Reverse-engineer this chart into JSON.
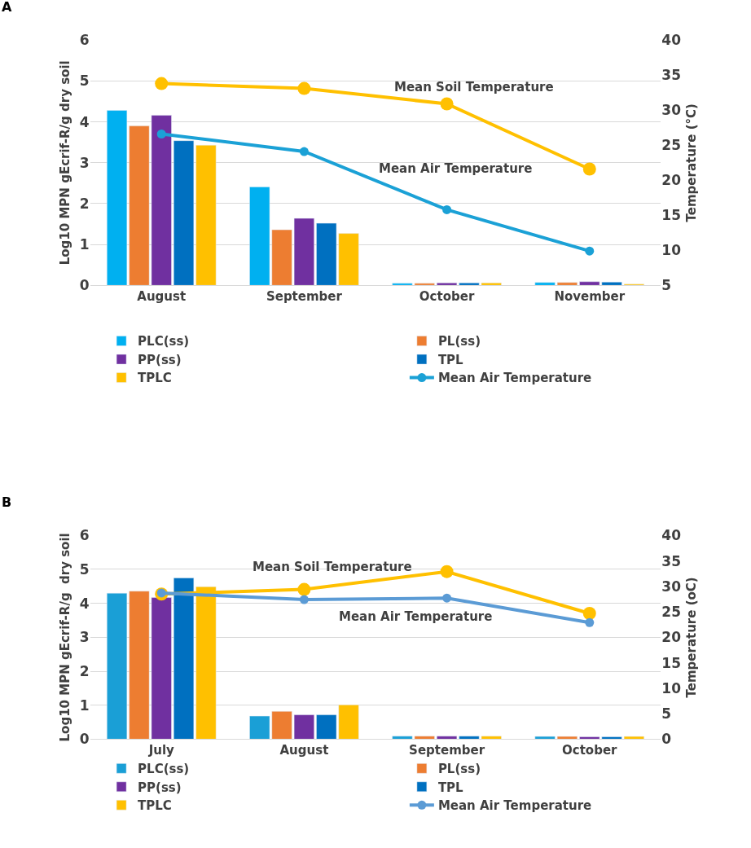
{
  "chart_data": [
    {
      "type": "bar",
      "categories": [
        "August",
        "September",
        "October",
        "November"
      ],
      "ylabel": "Log10 MPN gEcrif-R/g dry soil",
      "y2label": "Temperature (°C)",
      "ylim": [
        0,
        6
      ],
      "yticks": [
        0,
        1,
        2,
        3,
        4,
        5,
        6
      ],
      "y2lim": [
        5,
        40
      ],
      "y2ticks": [
        5,
        10,
        15,
        20,
        25,
        30,
        35,
        40
      ],
      "grid": "y",
      "legend": "bottom",
      "annotations": [
        "A",
        "Mean Soil Temperature",
        "Mean Air Temperature"
      ],
      "series": [
        {
          "name": "PLC(ss)",
          "color": "#00b0f0",
          "values": [
            4.28,
            2.41,
            0.05,
            0.07
          ]
        },
        {
          "name": "PL(ss)",
          "color": "#ed7d31",
          "values": [
            3.9,
            1.36,
            0.05,
            0.07
          ]
        },
        {
          "name": "PP(ss)",
          "color": "#7030a0",
          "values": [
            4.16,
            1.64,
            0.06,
            0.09
          ]
        },
        {
          "name": "TPL",
          "color": "#0070c0",
          "values": [
            3.54,
            1.52,
            0.06,
            0.08
          ]
        },
        {
          "name": "TPLC",
          "color": "#ffc000",
          "values": [
            3.43,
            1.27,
            0.06,
            0.03
          ]
        },
        {
          "type": "line",
          "axis": "y2",
          "marker": "circle",
          "color": "#ffc000",
          "values": [
            33.8,
            33.1,
            30.9,
            21.6
          ]
        },
        {
          "type": "line",
          "axis": "y2",
          "marker": "circle",
          "name": "Mean Air Temperature",
          "color": "#1ba1d6",
          "values": [
            26.6,
            24.1,
            15.8,
            9.9
          ]
        }
      ]
    },
    {
      "type": "bar",
      "categories": [
        "July",
        "August",
        "September",
        "October"
      ],
      "ylabel": "Log10 MPN gEcrif-R/g  dry soil",
      "y2label": "Temperature (oC)",
      "ylim": [
        0,
        6
      ],
      "yticks": [
        0,
        1,
        2,
        3,
        4,
        5,
        6
      ],
      "y2lim": [
        0,
        40
      ],
      "y2ticks": [
        0,
        5,
        10,
        15,
        20,
        25,
        30,
        35,
        40
      ],
      "grid": "y",
      "legend": "bottom",
      "annotations": [
        "B",
        "Mean Soil Temperature",
        "Mean Air Temperature"
      ],
      "series": [
        {
          "name": "PLC(ss)",
          "color": "#1a9fd6",
          "values": [
            4.3,
            0.68,
            0.09,
            0.08
          ]
        },
        {
          "name": "PL(ss)",
          "color": "#ed7d31",
          "values": [
            4.36,
            0.82,
            0.09,
            0.08
          ]
        },
        {
          "name": "PP(ss)",
          "color": "#7030a0",
          "values": [
            4.17,
            0.72,
            0.09,
            0.07
          ]
        },
        {
          "name": "TPL",
          "color": "#0070c0",
          "values": [
            4.75,
            0.72,
            0.09,
            0.07
          ]
        },
        {
          "name": "TPLC",
          "color": "#ffc000",
          "values": [
            4.49,
            1.01,
            0.09,
            0.08
          ]
        },
        {
          "type": "line",
          "axis": "y2",
          "marker": "circle",
          "color": "#ffc000",
          "values": [
            28.5,
            29.4,
            32.9,
            24.7
          ]
        },
        {
          "type": "line",
          "axis": "y2",
          "marker": "circle",
          "name": "Mean Air Temperature",
          "color": "#5b9bd5",
          "values": [
            28.7,
            27.4,
            27.7,
            22.9
          ]
        }
      ]
    }
  ]
}
